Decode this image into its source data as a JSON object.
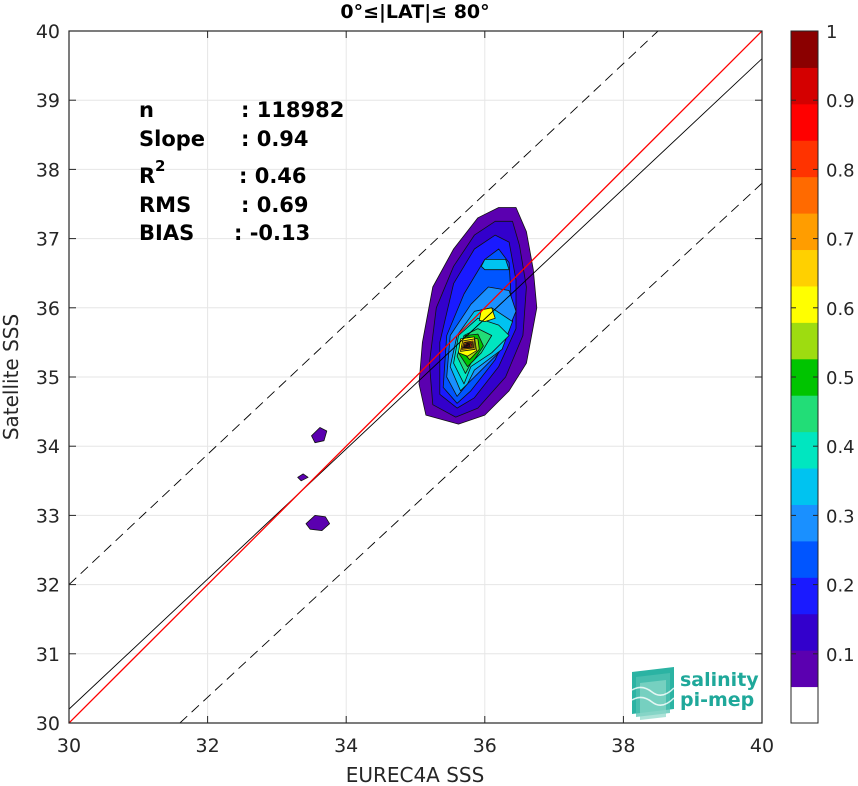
{
  "chart_data": {
    "type": "contour",
    "title": "0°≤|LAT|≤ 80°",
    "xlabel": "EUREC4A SSS",
    "ylabel": "Satellite SSS",
    "xlim": [
      30,
      40
    ],
    "ylim": [
      30,
      40
    ],
    "xticks": [
      "30",
      "32",
      "34",
      "36",
      "38",
      "40"
    ],
    "yticks": [
      "30",
      "31",
      "32",
      "33",
      "34",
      "35",
      "36",
      "37",
      "38",
      "39",
      "40"
    ],
    "grid": true,
    "stats": [
      {
        "label": "n",
        "value": ": 118982"
      },
      {
        "label": "Slope",
        "value": ": 0.94"
      },
      {
        "label": "R",
        "sup": "2",
        "value": ": 0.46"
      },
      {
        "label": "RMS",
        "value": ": 0.69"
      },
      {
        "label": "BIAS",
        "value": ": -0.13"
      }
    ],
    "lines": {
      "one_to_one": {
        "x": [
          30,
          40
        ],
        "y": [
          30,
          40
        ],
        "color": "#ff0000"
      },
      "regression": {
        "x": [
          30,
          40
        ],
        "y": [
          30.2,
          39.6
        ],
        "color": "#000000"
      },
      "upper_dashed": {
        "x": [
          30,
          38.5
        ],
        "y": [
          32,
          40
        ]
      },
      "lower_dashed": {
        "x": [
          31.6,
          40
        ],
        "y": [
          30,
          37.8
        ]
      }
    },
    "colorbar": {
      "ticks": [
        "0.1",
        "0.2",
        "0.3",
        "0.4",
        "0.5",
        "0.6",
        "0.7",
        "0.8",
        "0.9",
        "1"
      ],
      "colors": [
        "#ffffff",
        "#5b00b0",
        "#3300cc",
        "#1a1aff",
        "#0055ff",
        "#1a90ff",
        "#00c3f0",
        "#00e6c0",
        "#22dd77",
        "#00c400",
        "#9edc10",
        "#ffff00",
        "#ffd000",
        "#ff9d00",
        "#ff6a00",
        "#ff3300",
        "#ff0000",
        "#d40000",
        "#8b0000"
      ]
    },
    "contours": [
      {
        "level": 1,
        "points": [
          [
            35.62,
            34.32
          ],
          [
            35.15,
            34.45
          ],
          [
            35.05,
            34.9
          ],
          [
            35.1,
            35.5
          ],
          [
            35.25,
            36.3
          ],
          [
            35.55,
            36.85
          ],
          [
            35.9,
            37.3
          ],
          [
            36.2,
            37.45
          ],
          [
            36.45,
            37.45
          ],
          [
            36.6,
            37.1
          ],
          [
            36.7,
            36.55
          ],
          [
            36.75,
            36.0
          ],
          [
            36.6,
            35.2
          ],
          [
            36.35,
            34.8
          ],
          [
            36.0,
            34.45
          ]
        ]
      },
      {
        "level": 1,
        "points": [
          [
            33.5,
            34.15
          ],
          [
            33.62,
            34.27
          ],
          [
            33.72,
            34.22
          ],
          [
            33.68,
            34.08
          ],
          [
            33.55,
            34.05
          ]
        ]
      },
      {
        "level": 1,
        "points": [
          [
            33.3,
            33.55
          ],
          [
            33.38,
            33.6
          ],
          [
            33.45,
            33.55
          ],
          [
            33.35,
            33.5
          ]
        ]
      },
      {
        "level": 1,
        "points": [
          [
            33.42,
            32.88
          ],
          [
            33.55,
            33.0
          ],
          [
            33.7,
            32.98
          ],
          [
            33.76,
            32.88
          ],
          [
            33.65,
            32.78
          ],
          [
            33.48,
            32.8
          ]
        ]
      },
      {
        "level": 2,
        "points": [
          [
            35.58,
            34.42
          ],
          [
            35.25,
            34.6
          ],
          [
            35.2,
            35.2
          ],
          [
            35.3,
            36.0
          ],
          [
            35.55,
            36.6
          ],
          [
            35.85,
            37.05
          ],
          [
            36.15,
            37.25
          ],
          [
            36.4,
            37.25
          ],
          [
            36.5,
            36.9
          ],
          [
            36.6,
            36.3
          ],
          [
            36.55,
            35.6
          ],
          [
            36.3,
            35.0
          ],
          [
            35.9,
            34.55
          ]
        ]
      },
      {
        "level": 3,
        "points": [
          [
            35.6,
            34.55
          ],
          [
            35.35,
            34.75
          ],
          [
            35.35,
            35.5
          ],
          [
            35.55,
            36.35
          ],
          [
            35.85,
            36.85
          ],
          [
            36.15,
            37.05
          ],
          [
            36.35,
            36.95
          ],
          [
            36.45,
            36.4
          ],
          [
            36.45,
            35.7
          ],
          [
            36.2,
            35.15
          ],
          [
            35.85,
            34.7
          ]
        ]
      },
      {
        "level": 4,
        "points": [
          [
            35.6,
            34.62
          ],
          [
            35.4,
            34.85
          ],
          [
            35.45,
            35.6
          ],
          [
            35.7,
            36.2
          ],
          [
            36.0,
            36.7
          ],
          [
            36.2,
            36.85
          ],
          [
            36.35,
            36.65
          ],
          [
            36.4,
            35.8
          ],
          [
            36.15,
            35.25
          ],
          [
            35.8,
            34.8
          ]
        ]
      },
      {
        "level": 5,
        "points": [
          [
            35.6,
            34.72
          ],
          [
            35.45,
            35.0
          ],
          [
            35.5,
            35.6
          ],
          [
            35.8,
            36.05
          ],
          [
            36.05,
            36.3
          ],
          [
            36.35,
            36.25
          ],
          [
            36.45,
            35.95
          ],
          [
            36.2,
            35.35
          ],
          [
            35.75,
            34.9
          ]
        ]
      },
      {
        "level": 6,
        "points": [
          [
            35.65,
            34.8
          ],
          [
            35.5,
            35.15
          ],
          [
            35.6,
            35.6
          ],
          [
            35.85,
            35.95
          ],
          [
            36.1,
            36.0
          ],
          [
            36.4,
            35.8
          ],
          [
            36.25,
            35.4
          ],
          [
            35.85,
            35.1
          ],
          [
            35.75,
            34.9
          ]
        ]
      },
      {
        "level": 6,
        "points": [
          [
            35.95,
            36.6
          ],
          [
            36.0,
            36.7
          ],
          [
            36.3,
            36.7
          ],
          [
            36.35,
            36.55
          ],
          [
            36.0,
            36.55
          ]
        ]
      },
      {
        "level": 7,
        "points": [
          [
            35.7,
            34.9
          ],
          [
            35.55,
            35.2
          ],
          [
            35.62,
            35.6
          ],
          [
            35.9,
            35.85
          ],
          [
            36.2,
            35.75
          ],
          [
            36.35,
            35.6
          ],
          [
            36.1,
            35.35
          ],
          [
            35.8,
            35.15
          ]
        ]
      },
      {
        "level": 8,
        "points": [
          [
            35.72,
            35.05
          ],
          [
            35.6,
            35.3
          ],
          [
            35.7,
            35.6
          ],
          [
            35.9,
            35.7
          ],
          [
            36.1,
            35.6
          ],
          [
            35.95,
            35.35
          ],
          [
            35.8,
            35.2
          ]
        ]
      },
      {
        "level": 9,
        "points": [
          [
            35.75,
            35.15
          ],
          [
            35.62,
            35.35
          ],
          [
            35.72,
            35.6
          ],
          [
            35.9,
            35.62
          ],
          [
            35.98,
            35.45
          ],
          [
            35.85,
            35.25
          ]
        ]
      },
      {
        "level": 10,
        "points": [
          [
            35.78,
            35.25
          ],
          [
            35.65,
            35.4
          ],
          [
            35.75,
            35.58
          ],
          [
            35.9,
            35.55
          ],
          [
            35.92,
            35.4
          ],
          [
            35.83,
            35.3
          ]
        ]
      },
      {
        "level": 11,
        "points": [
          [
            35.92,
            35.82
          ],
          [
            35.95,
            35.97
          ],
          [
            36.1,
            36.0
          ],
          [
            36.15,
            35.85
          ],
          [
            36.0,
            35.8
          ]
        ]
      },
      {
        "level": 11,
        "points": [
          [
            35.62,
            35.35
          ],
          [
            35.65,
            35.55
          ],
          [
            35.85,
            35.58
          ],
          [
            35.88,
            35.38
          ],
          [
            35.75,
            35.3
          ]
        ]
      },
      {
        "level": 12,
        "points": [
          [
            35.65,
            35.37
          ],
          [
            35.68,
            35.52
          ],
          [
            35.85,
            35.55
          ],
          [
            35.86,
            35.4
          ]
        ]
      },
      {
        "level": 13,
        "points": [
          [
            35.67,
            35.4
          ],
          [
            35.7,
            35.5
          ],
          [
            35.83,
            35.52
          ],
          [
            35.84,
            35.42
          ]
        ]
      },
      {
        "level": 14,
        "points": [
          [
            35.69,
            35.42
          ],
          [
            35.72,
            35.5
          ],
          [
            35.82,
            35.5
          ],
          [
            35.82,
            35.43
          ]
        ]
      },
      {
        "level": 15,
        "points": [
          [
            35.7,
            35.43
          ],
          [
            35.74,
            35.49
          ],
          [
            35.81,
            35.48
          ],
          [
            35.8,
            35.43
          ]
        ]
      },
      {
        "level": 16,
        "points": [
          [
            35.72,
            35.44
          ],
          [
            35.75,
            35.48
          ],
          [
            35.79,
            35.47
          ],
          [
            35.78,
            35.44
          ]
        ]
      },
      {
        "level": 17,
        "points": [
          [
            35.73,
            35.45
          ],
          [
            35.76,
            35.47
          ],
          [
            35.78,
            35.46
          ]
        ]
      }
    ]
  },
  "logo": {
    "line1": "salinity",
    "line2": "pi-mep"
  }
}
